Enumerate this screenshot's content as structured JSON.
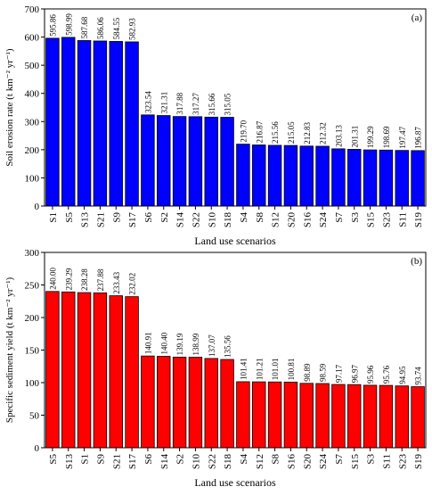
{
  "chart_data": [
    {
      "type": "bar",
      "panel_label": "(a)",
      "ylabel": "Soil erosion rate (t km⁻² yr⁻¹)",
      "xlabel": "Land use scenarios",
      "ylim": [
        0,
        700
      ],
      "yticks": [
        0,
        100,
        200,
        300,
        400,
        500,
        600,
        700
      ],
      "bar_color": "#0000ff",
      "categories": [
        "S1",
        "S5",
        "S13",
        "S21",
        "S9",
        "S17",
        "S6",
        "S2",
        "S14",
        "S22",
        "S10",
        "S18",
        "S4",
        "S8",
        "S12",
        "S20",
        "S16",
        "S24",
        "S7",
        "S3",
        "S15",
        "S23",
        "S11",
        "S19"
      ],
      "values": [
        595.86,
        598.99,
        587.68,
        586.06,
        584.55,
        582.93,
        323.54,
        321.31,
        317.88,
        317.27,
        315.66,
        315.05,
        219.7,
        216.87,
        215.56,
        215.05,
        212.83,
        212.32,
        203.13,
        201.31,
        199.29,
        198.69,
        197.47,
        196.87
      ],
      "data_labels": [
        "595.86",
        "598.99",
        "587.68",
        "586.06",
        "584.55",
        "582.93",
        "323.54",
        "321.31",
        "317.88",
        "317.27",
        "315.66",
        "315.05",
        "219.70",
        "216.87",
        "215.56",
        "215.05",
        "212.83",
        "212.32",
        "203.13",
        "201.31",
        "199.29",
        "198.69",
        "197.47",
        "196.87"
      ]
    },
    {
      "type": "bar",
      "panel_label": "(b)",
      "ylabel": "Specific sediment yield (t km⁻² yr⁻¹)",
      "xlabel": "Land use scenarios",
      "ylim": [
        0,
        300
      ],
      "yticks": [
        0,
        50,
        100,
        150,
        200,
        250,
        300
      ],
      "bar_color": "#ff0000",
      "categories": [
        "S5",
        "S13",
        "S1",
        "S9",
        "S21",
        "S17",
        "S6",
        "S14",
        "S2",
        "S10",
        "S22",
        "S18",
        "S4",
        "S12",
        "S8",
        "S16",
        "S20",
        "S24",
        "S7",
        "S15",
        "S3",
        "S11",
        "S23",
        "S19"
      ],
      "values": [
        240.0,
        239.29,
        238.28,
        237.88,
        233.43,
        232.02,
        140.91,
        140.4,
        139.19,
        138.99,
        137.07,
        135.56,
        101.41,
        101.21,
        101.01,
        100.81,
        98.89,
        98.59,
        97.17,
        96.97,
        95.96,
        95.76,
        94.95,
        93.74
      ],
      "data_labels": [
        "240.00",
        "239.29",
        "238.28",
        "237.88",
        "233.43",
        "232.02",
        "140.91",
        "140.40",
        "139.19",
        "138.99",
        "137.07",
        "135.56",
        "101.41",
        "101.21",
        "101.01",
        "100.81",
        "98.89",
        "98.59",
        "97.17",
        "96.97",
        "95.96",
        "95.76",
        "94.95",
        "93.74"
      ]
    }
  ]
}
